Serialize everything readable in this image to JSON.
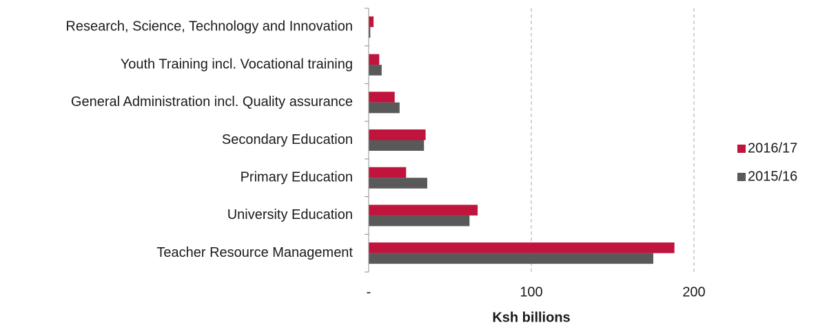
{
  "chart_data": {
    "type": "bar",
    "orientation": "horizontal",
    "x_label": "Ksh billions",
    "categories": [
      "Research, Science, Technology and Innovation",
      "Youth Training incl. Vocational training",
      "General Administration incl. Quality assurance",
      "Secondary Education",
      "Primary Education",
      "University Education",
      "Teacher Resource Management"
    ],
    "series": [
      {
        "name": "2016/17",
        "color": "#c0143c",
        "values": [
          3,
          6.5,
          16,
          35,
          23,
          67,
          188
        ]
      },
      {
        "name": "2015/16",
        "color": "#595959",
        "values": [
          1,
          8,
          19,
          34,
          36,
          62,
          175
        ]
      }
    ],
    "xlim": [
      0,
      200
    ],
    "xticks": [
      {
        "value": 0,
        "label": "-"
      },
      100,
      200
    ],
    "grid": true,
    "legend": "right"
  }
}
